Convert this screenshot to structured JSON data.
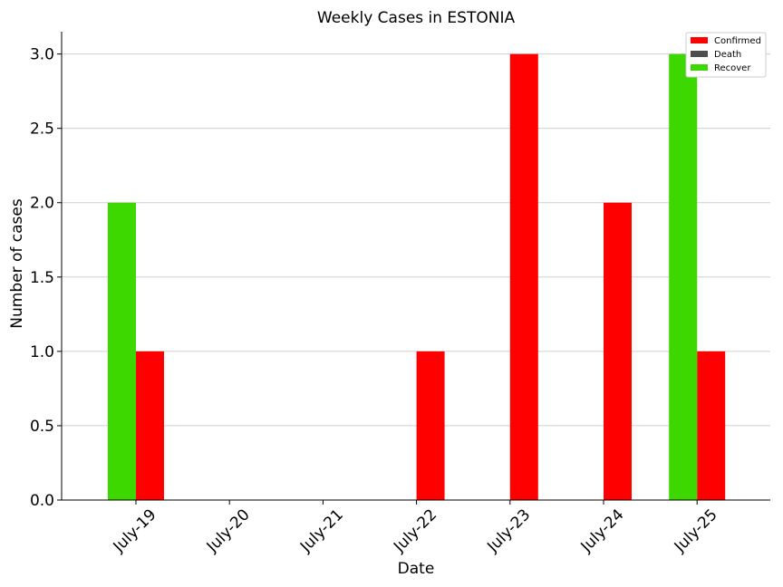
{
  "chart_data": {
    "type": "bar",
    "title": "Weekly Cases in ESTONIA",
    "xlabel": "Date",
    "ylabel": "Number of cases",
    "categories": [
      "July-19",
      "July-20",
      "July-21",
      "July-22",
      "July-23",
      "July-24",
      "July-25"
    ],
    "ylim": [
      0,
      3.15
    ],
    "yticks": [
      0.0,
      0.5,
      1.0,
      1.5,
      2.0,
      2.5,
      3.0
    ],
    "ytick_labels": [
      "0.0",
      "0.5",
      "1.0",
      "1.5",
      "2.0",
      "2.5",
      "3.0"
    ],
    "grid": "horizontal",
    "legend_position": "top-right",
    "series": [
      {
        "name": "Confirmed",
        "color": "#ff0000",
        "values": [
          1,
          0,
          0,
          1,
          3,
          2,
          1
        ]
      },
      {
        "name": "Death",
        "color": "#4d4d4d",
        "values": [
          0,
          0,
          0,
          0,
          0,
          0,
          0
        ]
      },
      {
        "name": "Recover",
        "color": "#3cd800",
        "values": [
          2,
          0,
          0,
          0,
          0,
          0,
          3
        ]
      }
    ]
  }
}
